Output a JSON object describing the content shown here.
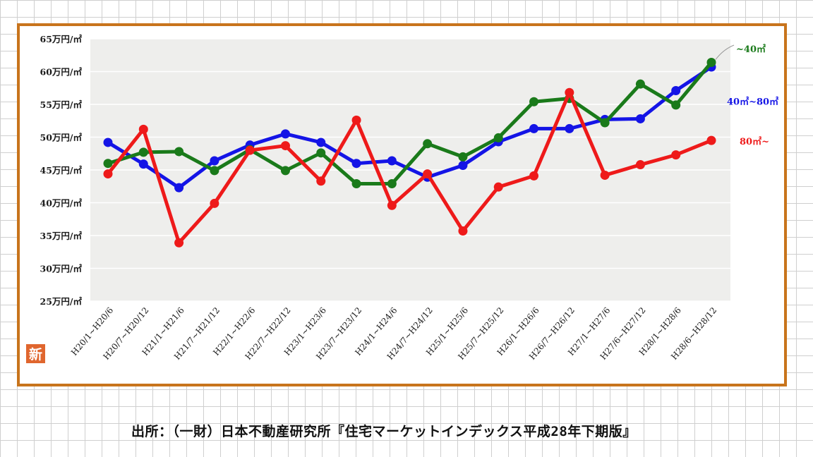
{
  "chart_data": {
    "type": "line",
    "y_ticks": [
      "25万円/㎡",
      "30万円/㎡",
      "35万円/㎡",
      "40万円/㎡",
      "45万円/㎡",
      "50万円/㎡",
      "55万円/㎡",
      "60万円/㎡",
      "65万円/㎡"
    ],
    "ylim": [
      25,
      65
    ],
    "categories": [
      "H20/1~H20/6",
      "H20/7~H20/12",
      "H21/1~H21/6",
      "H21/7~H21/12",
      "H22/1~H22/6",
      "H22/7~H22/12",
      "H23/1~H23/6",
      "H23/7~H23/12",
      "H24/1~H24/6",
      "H24/7~H24/12",
      "H25/1~H25/6",
      "H25/7~H25/12",
      "H26/1~H26/6",
      "H26/7~H26/12",
      "H27/1~H27/6",
      "H27/6~H27/12",
      "H28/1~H28/6",
      "H28/6~H28/12"
    ],
    "series": [
      {
        "name": "40㎡~80㎡",
        "color": "#1414e6",
        "values": [
          49.2,
          45.9,
          42.3,
          46.4,
          48.8,
          50.5,
          49.2,
          46.0,
          46.4,
          43.9,
          45.7,
          49.3,
          51.3,
          51.3,
          52.7,
          52.8,
          57.1,
          60.7
        ]
      },
      {
        "name": "~40㎡",
        "color": "#1a7a1a",
        "values": [
          46.0,
          47.7,
          47.8,
          44.9,
          48.1,
          44.9,
          47.6,
          42.9,
          42.9,
          49.0,
          47.0,
          49.9,
          55.4,
          55.9,
          52.2,
          58.1,
          54.9,
          61.4
        ]
      },
      {
        "name": "80㎡~",
        "color": "#ee1a1a",
        "values": [
          44.4,
          51.2,
          33.9,
          39.9,
          48.0,
          48.7,
          43.3,
          52.6,
          39.6,
          44.4,
          35.7,
          42.4,
          44.1,
          56.8,
          44.2,
          45.8,
          47.3,
          49.5
        ]
      }
    ]
  },
  "badge": "新",
  "source": "出所：（一財）日本不動産研究所『住宅マーケットインデックス平成28年下期版』"
}
